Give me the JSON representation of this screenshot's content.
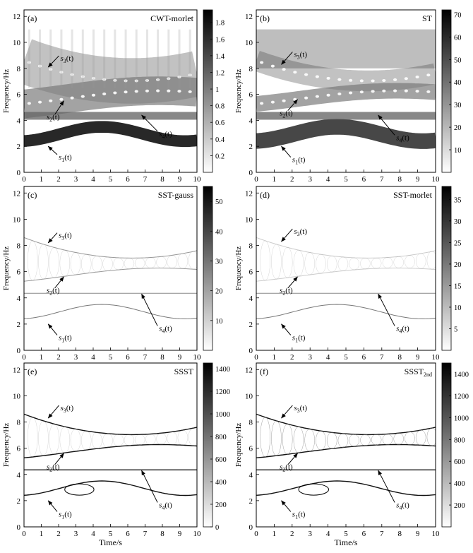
{
  "chart_data": [
    {
      "type": "heatmap",
      "panel_label": "(a)",
      "method": "CWT-morlet",
      "xlabel": "",
      "ylabel": "Frequency/Hz",
      "xlim": [
        0,
        10
      ],
      "ylim": [
        0,
        12.5
      ],
      "x_ticks": [
        "0",
        "1",
        "2",
        "3",
        "4",
        "5",
        "6",
        "7",
        "8",
        "9",
        "10"
      ],
      "y_ticks": [
        "0",
        "2",
        "4",
        "6",
        "8",
        "10",
        "12"
      ],
      "colorbar": {
        "range": [
          0,
          1.95
        ],
        "ticks": [
          "0.2",
          "0.4",
          "0.6",
          "0.8",
          "1",
          "1.2",
          "1.4",
          "1.6",
          "1.8"
        ]
      },
      "annotations": [
        {
          "text": "s",
          "sub": "3",
          "tail": [
            2.1,
            8.8
          ],
          "head": [
            1.4,
            8.1
          ]
        },
        {
          "text": "s",
          "sub": "2",
          "tail": [
            1.3,
            4.3
          ],
          "head": [
            2.3,
            5.5
          ]
        },
        {
          "text": "s",
          "sub": "4",
          "tail": [
            7.8,
            3.0
          ],
          "head": [
            6.8,
            4.4
          ]
        },
        {
          "text": "s",
          "sub": "1",
          "tail": [
            2.0,
            1.2
          ],
          "head": [
            1.4,
            2.0
          ]
        }
      ]
    },
    {
      "type": "heatmap",
      "panel_label": "(b)",
      "method": "ST",
      "xlabel": "",
      "ylabel": "Frequency/Hz",
      "xlim": [
        0,
        10
      ],
      "ylim": [
        0,
        12.5
      ],
      "x_ticks": [
        "0",
        "1",
        "2",
        "3",
        "4",
        "5",
        "6",
        "7",
        "8",
        "9",
        "10"
      ],
      "y_ticks": [
        "0",
        "2",
        "4",
        "6",
        "8",
        "10",
        "12"
      ],
      "colorbar": {
        "range": [
          0,
          72
        ],
        "ticks": [
          "10",
          "20",
          "30",
          "40",
          "50",
          "60",
          "70"
        ]
      },
      "annotations": [
        {
          "text": "s",
          "sub": "3",
          "tail": [
            2.1,
            9.1
          ],
          "head": [
            1.4,
            8.3
          ]
        },
        {
          "text": "s",
          "sub": "2",
          "tail": [
            1.3,
            4.6
          ],
          "head": [
            2.3,
            5.6
          ]
        },
        {
          "text": "s",
          "sub": "4",
          "tail": [
            7.8,
            2.7
          ],
          "head": [
            6.8,
            4.4
          ]
        },
        {
          "text": "s",
          "sub": "1",
          "tail": [
            2.0,
            1.0
          ],
          "head": [
            1.4,
            2.0
          ]
        }
      ]
    },
    {
      "type": "heatmap",
      "panel_label": "(c)",
      "method": "SST-gauss",
      "xlabel": "",
      "ylabel": "Frequency/Hz",
      "xlim": [
        0,
        10
      ],
      "ylim": [
        0,
        12.5
      ],
      "x_ticks": [
        "0",
        "1",
        "2",
        "3",
        "4",
        "5",
        "6",
        "7",
        "8",
        "9",
        "10"
      ],
      "y_ticks": [
        "0",
        "2",
        "4",
        "6",
        "8",
        "10",
        "12"
      ],
      "colorbar": {
        "range": [
          0,
          55
        ],
        "ticks": [
          "10",
          "20",
          "30",
          "40",
          "50"
        ]
      },
      "annotations": [
        {
          "text": "s",
          "sub": "3",
          "tail": [
            2.0,
            8.8
          ],
          "head": [
            1.4,
            8.2
          ]
        },
        {
          "text": "s",
          "sub": "2",
          "tail": [
            1.3,
            4.6
          ],
          "head": [
            2.3,
            5.6
          ]
        },
        {
          "text": "s",
          "sub": "4",
          "tail": [
            7.8,
            1.7
          ],
          "head": [
            6.8,
            4.3
          ]
        },
        {
          "text": "s",
          "sub": "1",
          "tail": [
            2.0,
            1.0
          ],
          "head": [
            1.4,
            2.0
          ]
        }
      ]
    },
    {
      "type": "heatmap",
      "panel_label": "(d)",
      "method": "SST-morlet",
      "xlabel": "",
      "ylabel": "Frequency/Hz",
      "xlim": [
        0,
        10
      ],
      "ylim": [
        0,
        12.5
      ],
      "x_ticks": [
        "0",
        "1",
        "2",
        "3",
        "4",
        "5",
        "6",
        "7",
        "8",
        "9",
        "10"
      ],
      "y_ticks": [
        "0",
        "2",
        "4",
        "6",
        "8",
        "10",
        "12"
      ],
      "colorbar": {
        "range": [
          0,
          38
        ],
        "ticks": [
          "5",
          "10",
          "15",
          "20",
          "25",
          "30",
          "35"
        ]
      },
      "annotations": [
        {
          "text": "s",
          "sub": "3",
          "tail": [
            2.1,
            9.1
          ],
          "head": [
            1.4,
            8.3
          ]
        },
        {
          "text": "s",
          "sub": "2",
          "tail": [
            1.3,
            4.6
          ],
          "head": [
            2.3,
            5.6
          ]
        },
        {
          "text": "s",
          "sub": "4",
          "tail": [
            7.8,
            1.7
          ],
          "head": [
            6.8,
            4.3
          ]
        },
        {
          "text": "s",
          "sub": "1",
          "tail": [
            2.0,
            1.0
          ],
          "head": [
            1.4,
            2.0
          ]
        }
      ]
    },
    {
      "type": "heatmap",
      "panel_label": "(e)",
      "method": "SSST",
      "method_sub": "",
      "xlabel": "Time/s",
      "ylabel": "Frequency/Hz",
      "xlim": [
        0,
        10
      ],
      "ylim": [
        0,
        12.5
      ],
      "x_ticks": [
        "0",
        "1",
        "2",
        "3",
        "4",
        "5",
        "6",
        "7",
        "8",
        "9",
        "10"
      ],
      "y_ticks": [
        "0",
        "2",
        "4",
        "6",
        "8",
        "10",
        "12"
      ],
      "colorbar": {
        "range": [
          0,
          1450
        ],
        "ticks": [
          "0",
          "200",
          "400",
          "600",
          "800",
          "1000",
          "1200",
          "1400"
        ]
      },
      "annotations": [
        {
          "text": "s",
          "sub": "3",
          "tail": [
            2.1,
            9.1
          ],
          "head": [
            1.4,
            8.3
          ]
        },
        {
          "text": "s",
          "sub": "2",
          "tail": [
            1.3,
            4.6
          ],
          "head": [
            2.3,
            5.6
          ]
        },
        {
          "text": "s",
          "sub": "4",
          "tail": [
            7.8,
            1.7
          ],
          "head": [
            6.8,
            4.3
          ]
        },
        {
          "text": "s",
          "sub": "1",
          "tail": [
            2.0,
            1.0
          ],
          "head": [
            1.4,
            2.0
          ]
        }
      ]
    },
    {
      "type": "heatmap",
      "panel_label": "(f)",
      "method": "SSST",
      "method_sub": "2nd",
      "xlabel": "Time/s",
      "ylabel": "Frequency/Hz",
      "xlim": [
        0,
        10
      ],
      "ylim": [
        0,
        12.5
      ],
      "x_ticks": [
        "0",
        "1",
        "2",
        "3",
        "4",
        "5",
        "6",
        "7",
        "8",
        "9",
        "10"
      ],
      "y_ticks": [
        "0",
        "2",
        "4",
        "6",
        "8",
        "10",
        "12"
      ],
      "colorbar": {
        "range": [
          0,
          1500
        ],
        "ticks": [
          "200",
          "400",
          "600",
          "800",
          "1000",
          "1200",
          "1400"
        ]
      },
      "annotations": [
        {
          "text": "s",
          "sub": "3",
          "tail": [
            2.1,
            9.1
          ],
          "head": [
            1.4,
            8.3
          ]
        },
        {
          "text": "s",
          "sub": "2",
          "tail": [
            1.3,
            4.6
          ],
          "head": [
            2.3,
            5.6
          ]
        },
        {
          "text": "s",
          "sub": "4",
          "tail": [
            7.8,
            1.7
          ],
          "head": [
            6.8,
            4.3
          ]
        },
        {
          "text": "s",
          "sub": "1",
          "tail": [
            2.0,
            1.0
          ],
          "head": [
            1.4,
            2.0
          ]
        }
      ]
    }
  ]
}
